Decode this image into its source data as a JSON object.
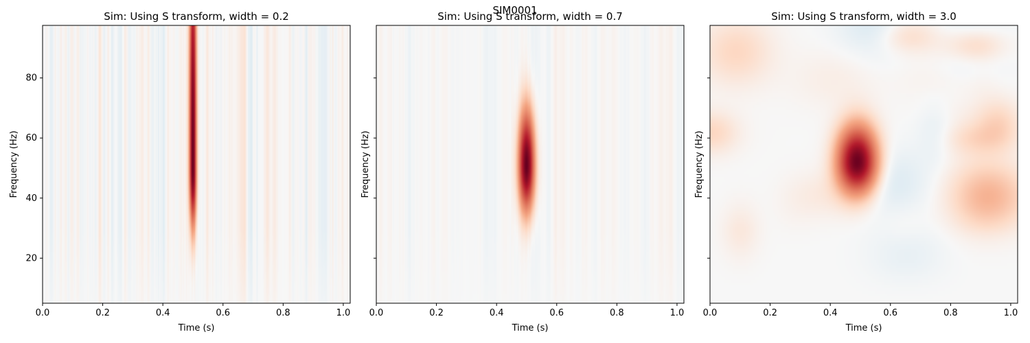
{
  "figure": {
    "suptitle": "SIM0001"
  },
  "colormap": {
    "name": "RdBu_r",
    "negative": "#2166ac",
    "neutral": "#f7f7f7",
    "positive": "#67001f"
  },
  "chart_data": [
    {
      "type": "heatmap",
      "title": "Sim: Using S transform, width = 0.2",
      "xlabel": "Time (s)",
      "ylabel": "Frequency (Hz)",
      "xlim": [
        0.0,
        1.023
      ],
      "ylim": [
        5,
        97.5
      ],
      "xticks": [
        0.0,
        0.2,
        0.4,
        0.6,
        0.8,
        1.0
      ],
      "xtick_labels": [
        "0.0",
        "0.2",
        "0.4",
        "0.6",
        "0.8",
        "1.0"
      ],
      "yticks": [
        20,
        40,
        60,
        80
      ],
      "ytick_labels": [
        "20",
        "40",
        "60",
        "80"
      ],
      "show_ytick_labels": true,
      "width_param": 0.2,
      "peak": {
        "time": 0.5,
        "freq": 50,
        "time_sigma": 0.008,
        "freq_sigma_low": 13,
        "freq_sigma_high": 60,
        "amplitude": 1.0
      },
      "background_noise": 0.08,
      "grid": false
    },
    {
      "type": "heatmap",
      "title": "Sim: Using S transform, width = 0.7",
      "xlabel": "Time (s)",
      "ylabel": "Frequency (Hz)",
      "xlim": [
        0.0,
        1.023
      ],
      "ylim": [
        5,
        97.5
      ],
      "xticks": [
        0.0,
        0.2,
        0.4,
        0.6,
        0.8,
        1.0
      ],
      "xtick_labels": [
        "0.0",
        "0.2",
        "0.4",
        "0.6",
        "0.8",
        "1.0"
      ],
      "yticks": [
        20,
        40,
        60,
        80
      ],
      "ytick_labels": [
        "",
        "",
        "",
        ""
      ],
      "show_ytick_labels": false,
      "width_param": 0.7,
      "peak": {
        "time": 0.5,
        "freq": 51,
        "time_sigma": 0.018,
        "freq_sigma_low": 10,
        "freq_sigma_high": 12,
        "amplitude": 1.0
      },
      "background_noise": 0.05,
      "grid": false
    },
    {
      "type": "heatmap",
      "title": "Sim: Using S transform, width = 3.0",
      "xlabel": "Time (s)",
      "ylabel": "Frequency (Hz)",
      "xlim": [
        0.0,
        1.023
      ],
      "ylim": [
        5,
        97.5
      ],
      "xticks": [
        0.0,
        0.2,
        0.4,
        0.6,
        0.8,
        1.0
      ],
      "xtick_labels": [
        "0.0",
        "0.2",
        "0.4",
        "0.6",
        "0.8",
        "1.0"
      ],
      "yticks": [
        20,
        40,
        60,
        80
      ],
      "ytick_labels": [
        "",
        "",
        "",
        ""
      ],
      "show_ytick_labels": false,
      "width_param": 3.0,
      "peak": {
        "time": 0.49,
        "freq": 52,
        "time_sigma": 0.045,
        "freq_sigma_low": 7,
        "freq_sigma_high": 8,
        "amplitude": 1.0
      },
      "background_noise": 0.1,
      "grid": false
    }
  ]
}
